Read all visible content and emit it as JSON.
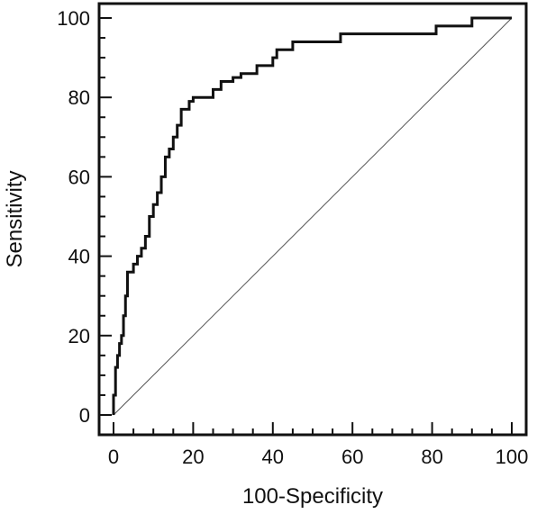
{
  "chart_data": {
    "type": "line",
    "title": "",
    "xlabel": "100-Specificity",
    "ylabel": "Sensitivity",
    "xlim": [
      0,
      100
    ],
    "ylim": [
      0,
      100
    ],
    "x_ticks": [
      0,
      20,
      40,
      60,
      80,
      100
    ],
    "y_ticks": [
      0,
      20,
      40,
      60,
      80,
      100
    ],
    "x_tick_labels": [
      "0",
      "20",
      "40",
      "60",
      "80",
      "100"
    ],
    "y_tick_labels": [
      "0",
      "20",
      "40",
      "60",
      "80",
      "100"
    ],
    "grid": false,
    "legend": "none",
    "colors": {
      "curve": "#111111",
      "diagonal": "#555555",
      "frame": "#111111"
    },
    "series": [
      {
        "style": "step",
        "points": [
          [
            0,
            0
          ],
          [
            0,
            5
          ],
          [
            0.5,
            5
          ],
          [
            0.5,
            12
          ],
          [
            1,
            12
          ],
          [
            1,
            15
          ],
          [
            1.5,
            15
          ],
          [
            1.5,
            18
          ],
          [
            2,
            18
          ],
          [
            2,
            20
          ],
          [
            2.5,
            20
          ],
          [
            2.5,
            25
          ],
          [
            3,
            25
          ],
          [
            3,
            30
          ],
          [
            3.5,
            30
          ],
          [
            3.5,
            36
          ],
          [
            5,
            36
          ],
          [
            5,
            38
          ],
          [
            6,
            38
          ],
          [
            6,
            40
          ],
          [
            7,
            40
          ],
          [
            7,
            42
          ],
          [
            8,
            42
          ],
          [
            8,
            45
          ],
          [
            9,
            45
          ],
          [
            9,
            50
          ],
          [
            10,
            50
          ],
          [
            10,
            53
          ],
          [
            11,
            53
          ],
          [
            11,
            56
          ],
          [
            12,
            56
          ],
          [
            12,
            60
          ],
          [
            13,
            60
          ],
          [
            13,
            65
          ],
          [
            14,
            65
          ],
          [
            14,
            67
          ],
          [
            15,
            67
          ],
          [
            15,
            70
          ],
          [
            16,
            70
          ],
          [
            16,
            73
          ],
          [
            17,
            73
          ],
          [
            17,
            77
          ],
          [
            19,
            77
          ],
          [
            19,
            79
          ],
          [
            20,
            79
          ],
          [
            20,
            80
          ],
          [
            25,
            80
          ],
          [
            25,
            82
          ],
          [
            27,
            82
          ],
          [
            27,
            84
          ],
          [
            30,
            84
          ],
          [
            30,
            85
          ],
          [
            32,
            85
          ],
          [
            32,
            86
          ],
          [
            36,
            86
          ],
          [
            36,
            88
          ],
          [
            40,
            88
          ],
          [
            40,
            90
          ],
          [
            41,
            90
          ],
          [
            41,
            92
          ],
          [
            45,
            92
          ],
          [
            45,
            94
          ],
          [
            57,
            94
          ],
          [
            57,
            96
          ],
          [
            81,
            96
          ],
          [
            81,
            98
          ],
          [
            90,
            98
          ],
          [
            90,
            100
          ],
          [
            100,
            100
          ]
        ]
      },
      {
        "style": "reference",
        "points": [
          [
            0,
            0
          ],
          [
            100,
            100
          ]
        ]
      }
    ]
  }
}
